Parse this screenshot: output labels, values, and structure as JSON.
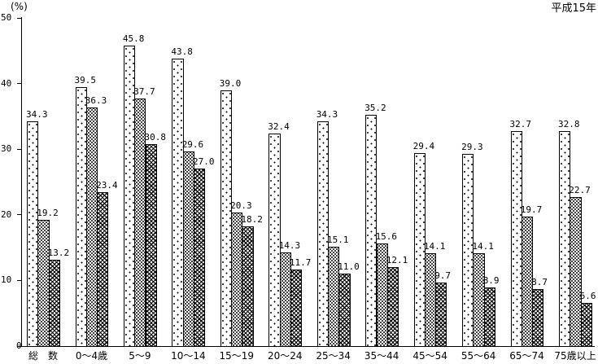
{
  "chart_data": {
    "type": "bar",
    "title": "",
    "unit_label": "(%)",
    "annotation": "平成15年",
    "categories": [
      "総　数",
      "0〜4歳",
      "5〜9",
      "10〜14",
      "15〜19",
      "20〜24",
      "25〜34",
      "35〜44",
      "45〜54",
      "55〜64",
      "65〜74",
      "75歳以上"
    ],
    "series": [
      {
        "name": "sparse-dot-pattern",
        "values": [
          34.3,
          39.5,
          45.8,
          43.8,
          39.0,
          32.4,
          34.3,
          35.2,
          29.4,
          29.3,
          32.7,
          32.8
        ]
      },
      {
        "name": "dense-dot-pattern",
        "values": [
          19.2,
          36.3,
          37.7,
          29.6,
          20.3,
          14.3,
          15.1,
          15.6,
          14.1,
          14.1,
          19.7,
          22.7
        ]
      },
      {
        "name": "crosshatch-pattern",
        "values": [
          13.2,
          23.4,
          30.8,
          27.0,
          18.2,
          11.7,
          11.0,
          12.1,
          9.7,
          8.9,
          8.7,
          6.6
        ]
      }
    ],
    "ylabel": "",
    "xlabel": "",
    "ylim": [
      0,
      50
    ],
    "yticks": [
      0,
      10,
      20,
      30,
      40,
      50
    ],
    "grid": false,
    "legend_position": "none",
    "bar_border_color": "#000000",
    "background_color": "#ffffff"
  }
}
